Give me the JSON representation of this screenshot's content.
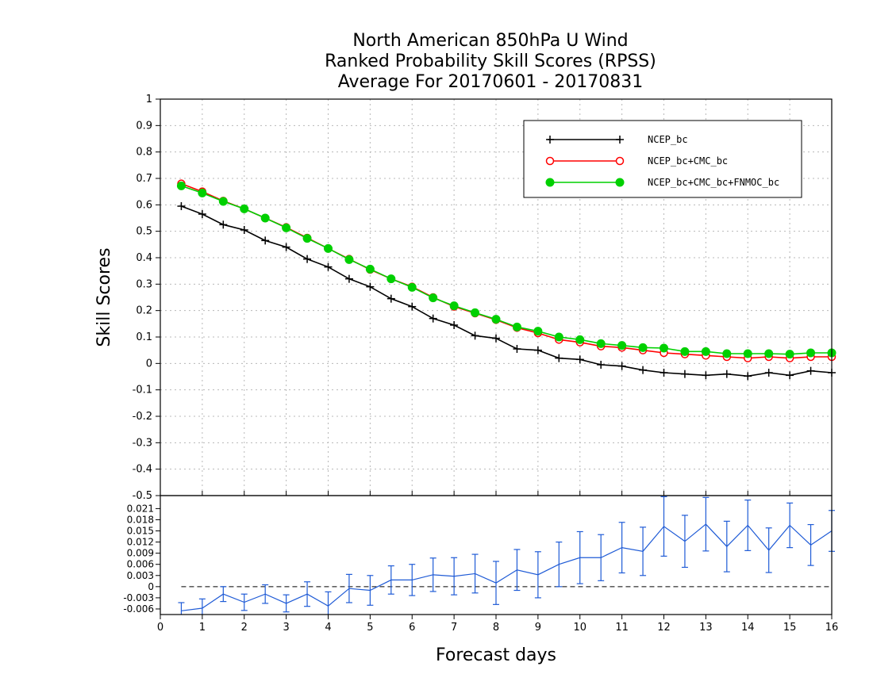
{
  "chart_data": [
    {
      "type": "line",
      "title_lines": [
        "North American 850hPa U Wind",
        "Ranked Probability Skill Scores (RPSS)",
        "Average For 20170601 - 20170831"
      ],
      "ylabel": "Skill Scores",
      "xlabel": "Forecast days",
      "xlim": [
        0,
        16
      ],
      "ylim": [
        -0.5,
        1
      ],
      "x_ticks": [
        "0",
        "1",
        "2",
        "3",
        "4",
        "5",
        "6",
        "7",
        "8",
        "9",
        "10",
        "11",
        "12",
        "13",
        "14",
        "15",
        "16"
      ],
      "y_ticks": [
        "-0.5",
        "-0.4",
        "-0.3",
        "-0.2",
        "-0.1",
        "0",
        "0.1",
        "0.2",
        "0.3",
        "0.4",
        "0.5",
        "0.6",
        "0.7",
        "0.8",
        "0.9",
        "1"
      ],
      "grid": true,
      "legend_position": "top-right",
      "x": [
        0.5,
        1,
        1.5,
        2,
        2.5,
        3,
        3.5,
        4,
        4.5,
        5,
        5.5,
        6,
        6.5,
        7,
        7.5,
        8,
        8.5,
        9,
        9.5,
        10,
        10.5,
        11,
        11.5,
        12,
        12.5,
        13,
        13.5,
        14,
        14.5,
        15,
        15.5,
        16
      ],
      "series": [
        {
          "name": "NCEP_bc",
          "color": "#000000",
          "marker": "plus",
          "values": [
            0.595,
            0.565,
            0.525,
            0.505,
            0.465,
            0.44,
            0.395,
            0.365,
            0.32,
            0.29,
            0.245,
            0.215,
            0.17,
            0.145,
            0.105,
            0.095,
            0.055,
            0.05,
            0.02,
            0.015,
            -0.005,
            -0.01,
            -0.025,
            -0.035,
            -0.04,
            -0.045,
            -0.04,
            -0.048,
            -0.035,
            -0.045,
            -0.028,
            -0.035
          ]
        },
        {
          "name": "NCEP_bc+CMC_bc",
          "color": "#ff0000",
          "marker": "open-circle",
          "values": [
            0.68,
            0.65,
            0.615,
            0.585,
            0.55,
            0.515,
            0.475,
            0.435,
            0.395,
            0.355,
            0.32,
            0.29,
            0.25,
            0.215,
            0.19,
            0.165,
            0.135,
            0.115,
            0.09,
            0.08,
            0.065,
            0.06,
            0.05,
            0.04,
            0.035,
            0.03,
            0.025,
            0.02,
            0.025,
            0.02,
            0.025,
            0.025
          ]
        },
        {
          "name": "NCEP_bc+CMC_bc+FNMOC_bc",
          "color": "#00d000",
          "marker": "filled-circle",
          "values": [
            0.672,
            0.645,
            0.613,
            0.585,
            0.55,
            0.513,
            0.473,
            0.435,
            0.393,
            0.357,
            0.32,
            0.288,
            0.248,
            0.218,
            0.192,
            0.167,
            0.138,
            0.122,
            0.1,
            0.09,
            0.075,
            0.068,
            0.06,
            0.058,
            0.045,
            0.045,
            0.037,
            0.037,
            0.037,
            0.035,
            0.04,
            0.04
          ]
        }
      ]
    },
    {
      "type": "line",
      "ylim": [
        -0.0075,
        0.0245
      ],
      "y_ticks": [
        "-0.006",
        "-0.003",
        "0",
        "0.003",
        "0.006",
        "0.009",
        "0.012",
        "0.015",
        "0.018",
        "0.021"
      ],
      "x_ticks": [
        "0",
        "1",
        "2",
        "3",
        "4",
        "5",
        "6",
        "7",
        "8",
        "9",
        "10",
        "11",
        "12",
        "13",
        "14",
        "15",
        "16"
      ],
      "xlim": [
        0,
        16
      ],
      "zero_line": true,
      "series": [
        {
          "name": "",
          "color": "#1f5bd6",
          "marker": "error-bar",
          "x": [
            0.5,
            1,
            1.5,
            2,
            2.5,
            3,
            3.5,
            4,
            4.5,
            5,
            5.5,
            6,
            6.5,
            7,
            7.5,
            8,
            8.5,
            9,
            9.5,
            10,
            10.5,
            11,
            11.5,
            12,
            12.5,
            13,
            13.5,
            14,
            14.5,
            15,
            15.5,
            16
          ],
          "values": [
            -0.0065,
            -0.0058,
            -0.002,
            -0.0042,
            -0.002,
            -0.0045,
            -0.002,
            -0.0052,
            -0.0005,
            -0.001,
            0.0018,
            0.0018,
            0.0032,
            0.0028,
            0.0035,
            0.001,
            0.0045,
            0.0032,
            0.006,
            0.0078,
            0.0078,
            0.0105,
            0.0095,
            0.0162,
            0.0122,
            0.0168,
            0.0108,
            0.0165,
            0.0098,
            0.0165,
            0.0112,
            0.015
          ],
          "error": [
            0.0022,
            0.0025,
            0.002,
            0.0022,
            0.0025,
            0.0023,
            0.0033,
            0.0038,
            0.0038,
            0.004,
            0.0038,
            0.0042,
            0.0045,
            0.005,
            0.0052,
            0.0058,
            0.0055,
            0.0062,
            0.006,
            0.007,
            0.0062,
            0.0068,
            0.0065,
            0.008,
            0.007,
            0.0072,
            0.0068,
            0.0068,
            0.006,
            0.006,
            0.0055,
            0.0055
          ]
        }
      ]
    }
  ]
}
